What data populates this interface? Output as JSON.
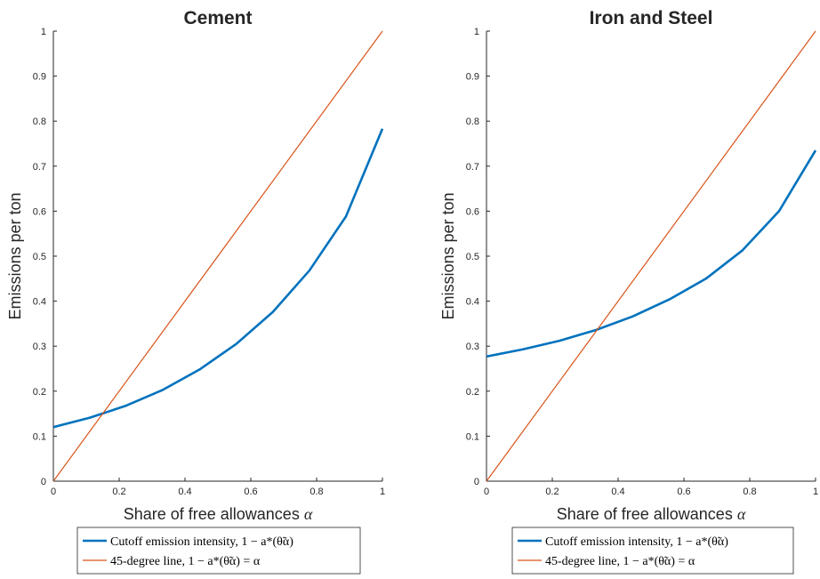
{
  "chart_data": [
    {
      "type": "line",
      "title": "Cement",
      "xlabel": "Share of free allowances",
      "xlabel_symbol": "α",
      "ylabel": "Emissions per ton",
      "xlim": [
        0,
        1
      ],
      "ylim": [
        0,
        1
      ],
      "xticks": [
        "0",
        "0.2",
        "0.4",
        "0.6",
        "0.8",
        "1"
      ],
      "yticks": [
        "0",
        "0.1",
        "0.2",
        "0.3",
        "0.4",
        "0.5",
        "0.6",
        "0.7",
        "0.8",
        "0.9",
        "1"
      ],
      "grid": false,
      "legend_placement": "below",
      "series": [
        {
          "name": "Cutoff emission intensity, 1 − a*(θ̃α)",
          "color": "#0072BD",
          "x": [
            0,
            0.111,
            0.222,
            0.333,
            0.444,
            0.556,
            0.667,
            0.778,
            0.889,
            1.0
          ],
          "y": [
            0.12,
            0.141,
            0.168,
            0.203,
            0.248,
            0.305,
            0.376,
            0.468,
            0.588,
            0.783
          ]
        },
        {
          "name": "45-degree line, 1 − a*(θ̃α) = α",
          "color": "#D95319",
          "x": [
            0,
            1
          ],
          "y": [
            0,
            1
          ]
        }
      ]
    },
    {
      "type": "line",
      "title": "Iron and Steel",
      "xlabel": "Share of free allowances",
      "xlabel_symbol": "α",
      "ylabel": "Emissions per ton",
      "xlim": [
        0,
        1
      ],
      "ylim": [
        0,
        1
      ],
      "xticks": [
        "0",
        "0.2",
        "0.4",
        "0.6",
        "0.8",
        "1"
      ],
      "yticks": [
        "0",
        "0.1",
        "0.2",
        "0.3",
        "0.4",
        "0.5",
        "0.6",
        "0.7",
        "0.8",
        "0.9",
        "1"
      ],
      "grid": false,
      "legend_placement": "below",
      "series": [
        {
          "name": "Cutoff emission intensity, 1 − a*(θ̃α)",
          "color": "#0072BD",
          "x": [
            0,
            0.111,
            0.222,
            0.333,
            0.444,
            0.556,
            0.667,
            0.778,
            0.889,
            1.0
          ],
          "y": [
            0.277,
            0.293,
            0.312,
            0.336,
            0.366,
            0.404,
            0.45,
            0.513,
            0.6,
            0.735
          ]
        },
        {
          "name": "45-degree line, 1 − a*(θ̃α) = α",
          "color": "#D95319",
          "x": [
            0,
            1
          ],
          "y": [
            0,
            1
          ]
        }
      ]
    }
  ]
}
